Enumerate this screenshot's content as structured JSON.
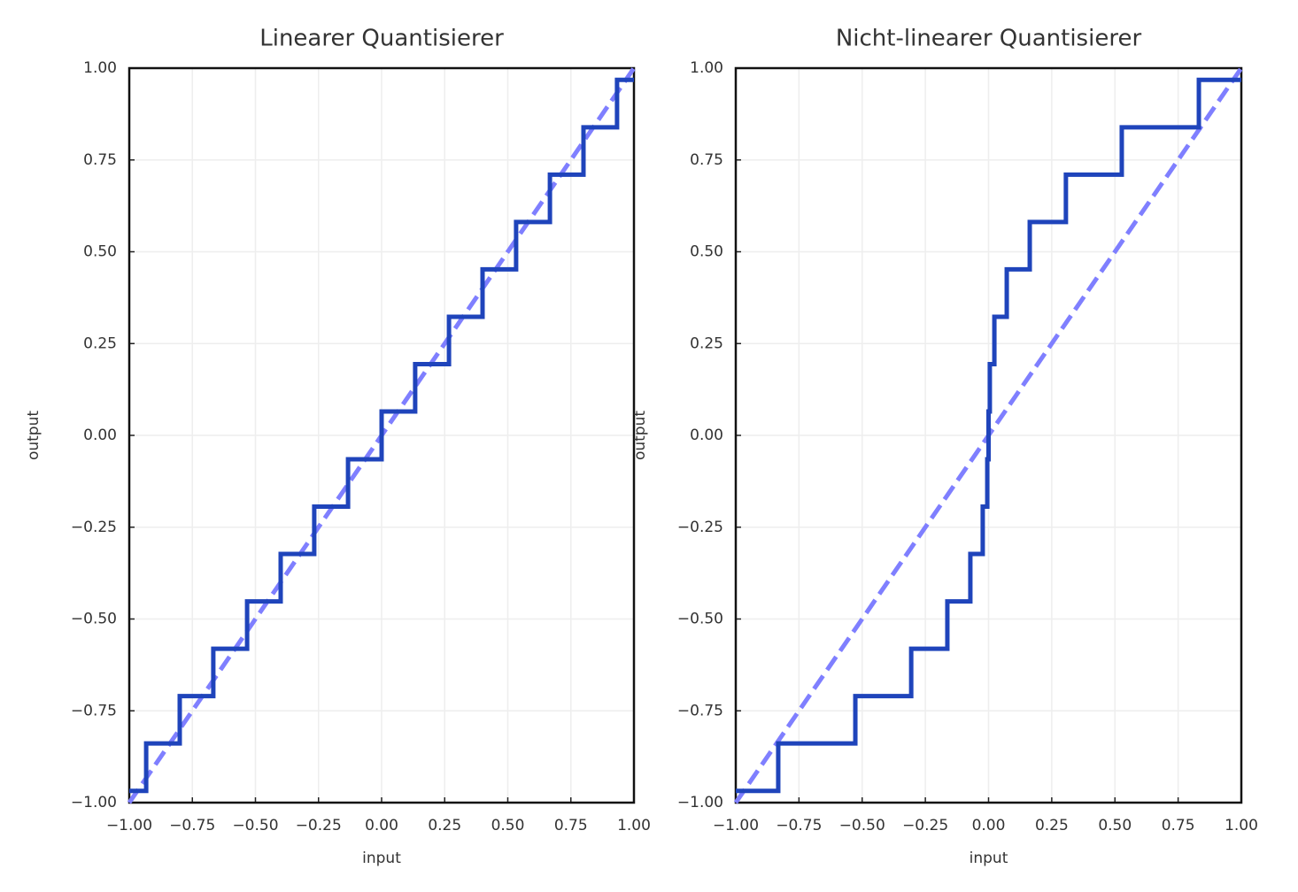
{
  "chart_data": [
    {
      "type": "line",
      "title": "Linearer Quantisierer",
      "xlabel": "input",
      "ylabel": "output",
      "xlim": [
        -1,
        1
      ],
      "ylim": [
        -1,
        1
      ],
      "grid": true,
      "xticks": [
        {
          "value": -1,
          "label": "−1.00"
        },
        {
          "value": -0.75,
          "label": "−0.75"
        },
        {
          "value": -0.5,
          "label": "−0.50"
        },
        {
          "value": -0.25,
          "label": "−0.25"
        },
        {
          "value": 0,
          "label": "0.00"
        },
        {
          "value": 0.25,
          "label": "0.25"
        },
        {
          "value": 0.5,
          "label": "0.50"
        },
        {
          "value": 0.75,
          "label": "0.75"
        },
        {
          "value": 1,
          "label": "1.00"
        }
      ],
      "yticks": [
        {
          "value": -1,
          "label": "−1.00"
        },
        {
          "value": -0.75,
          "label": "−0.75"
        },
        {
          "value": -0.5,
          "label": "−0.50"
        },
        {
          "value": -0.25,
          "label": "−0.25"
        },
        {
          "value": 0,
          "label": "0.00"
        },
        {
          "value": 0.25,
          "label": "0.25"
        },
        {
          "value": 0.5,
          "label": "0.50"
        },
        {
          "value": 0.75,
          "label": "0.75"
        },
        {
          "value": 1,
          "label": "1.00"
        }
      ],
      "series": [
        {
          "color": "#7f7fff",
          "linestyle": "dashed",
          "x": [
            -1,
            1
          ],
          "values": [
            -1,
            1
          ]
        },
        {
          "color": "#1f44bb",
          "drawstyle": "steps-post",
          "x": [
            -1,
            -0.933,
            -0.8,
            -0.667,
            -0.533,
            -0.4,
            -0.267,
            -0.133,
            0,
            0.133,
            0.267,
            0.4,
            0.533,
            0.667,
            0.8,
            0.933
          ],
          "values": [
            -0.968,
            -0.839,
            -0.71,
            -0.581,
            -0.452,
            -0.323,
            -0.194,
            -0.065,
            0.065,
            0.194,
            0.323,
            0.452,
            0.581,
            0.71,
            0.839,
            0.968
          ]
        }
      ]
    },
    {
      "type": "line",
      "title": "Nicht-linearer Quantisierer",
      "xlabel": "input",
      "ylabel": "output",
      "xlim": [
        -1,
        1
      ],
      "ylim": [
        -1,
        1
      ],
      "grid": true,
      "xticks": [
        {
          "value": -1,
          "label": "−1.00"
        },
        {
          "value": -0.75,
          "label": "−0.75"
        },
        {
          "value": -0.5,
          "label": "−0.50"
        },
        {
          "value": -0.25,
          "label": "−0.25"
        },
        {
          "value": 0,
          "label": "0.00"
        },
        {
          "value": 0.25,
          "label": "0.25"
        },
        {
          "value": 0.5,
          "label": "0.50"
        },
        {
          "value": 0.75,
          "label": "0.75"
        },
        {
          "value": 1,
          "label": "1.00"
        }
      ],
      "yticks": [
        {
          "value": -1,
          "label": "−1.00"
        },
        {
          "value": -0.75,
          "label": "−0.75"
        },
        {
          "value": -0.5,
          "label": "−0.50"
        },
        {
          "value": -0.25,
          "label": "−0.25"
        },
        {
          "value": 0,
          "label": "0.00"
        },
        {
          "value": 0.25,
          "label": "0.25"
        },
        {
          "value": 0.5,
          "label": "0.50"
        },
        {
          "value": 0.75,
          "label": "0.75"
        },
        {
          "value": 1,
          "label": "1.00"
        }
      ],
      "series": [
        {
          "color": "#7f7fff",
          "linestyle": "dashed",
          "x": [
            -1,
            1
          ],
          "values": [
            -1,
            1
          ]
        },
        {
          "color": "#1f44bb",
          "drawstyle": "steps-post",
          "x": [
            -1,
            -0.832,
            -0.527,
            -0.306,
            -0.163,
            -0.072,
            -0.023,
            -0.005,
            0,
            0.005,
            0.023,
            0.072,
            0.163,
            0.306,
            0.527,
            0.832
          ],
          "values": [
            -0.968,
            -0.839,
            -0.71,
            -0.581,
            -0.452,
            -0.323,
            -0.194,
            -0.065,
            0.065,
            0.194,
            0.323,
            0.452,
            0.581,
            0.71,
            0.839,
            0.968
          ]
        }
      ]
    }
  ]
}
